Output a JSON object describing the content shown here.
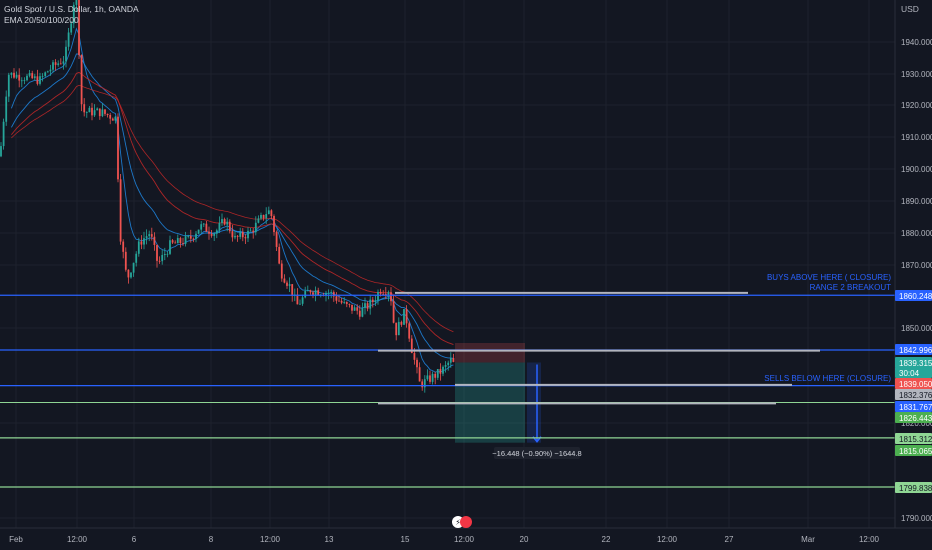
{
  "header": {
    "symbol_line": "Gold Spot / U.S. Dollar, 1h, OANDA",
    "indicator_line": "EMA 20/50/100/200"
  },
  "axis": {
    "currency": "USD",
    "y_ticks": [
      "1940.000",
      "1930.000",
      "1920.000",
      "1910.000",
      "1900.000",
      "1890.000",
      "1880.000",
      "1870.000",
      "1850.000",
      "1820.000",
      "1790.000"
    ],
    "x_ticks": [
      "Feb",
      "12:00",
      "6",
      "8",
      "12:00",
      "13",
      "15",
      "12:00",
      "20",
      "22",
      "12:00",
      "27",
      "Mar",
      "12:00"
    ]
  },
  "colors": {
    "background": "#131722",
    "up": "#26a69a",
    "down": "#ef5350",
    "blue_level": "#2962ff",
    "green_level": "#8fd694",
    "grey_line": "#b2b5be",
    "ema_fast": "#1e88e5",
    "ema_slow": "#c62828"
  },
  "annotations": {
    "buy_line1": "BUYS ABOVE HERE ( CLOSURE)",
    "buy_line2": "RANGE 2 BREAKOUT",
    "sell_line": "SELLS BELOW HERE (CLOSURE)",
    "measure": "−16.448 (−0.90%) −1644.8"
  },
  "price_labels": [
    {
      "text": "1860.248",
      "bg": "#2962ff",
      "fg": "#ffffff"
    },
    {
      "text": "1842.996",
      "bg": "#2962ff",
      "fg": "#ffffff"
    },
    {
      "text": "1839.315",
      "bg": "#26a69a",
      "fg": "#ffffff"
    },
    {
      "text": "30:04",
      "bg": "#26a69a",
      "fg": "#ffffff"
    },
    {
      "text": "1839.050",
      "bg": "#ef5350",
      "fg": "#ffffff"
    },
    {
      "text": "1832.376",
      "bg": "#b2b5be",
      "fg": "#131722"
    },
    {
      "text": "1831.767",
      "bg": "#2962ff",
      "fg": "#ffffff"
    },
    {
      "text": "1826.443",
      "bg": "#4caf50",
      "fg": "#ffffff"
    },
    {
      "text": "1815.312",
      "bg": "#8fd694",
      "fg": "#131722"
    },
    {
      "text": "1815.065",
      "bg": "#4caf50",
      "fg": "#ffffff"
    },
    {
      "text": "1799.838",
      "bg": "#8fd694",
      "fg": "#131722"
    }
  ],
  "chart_data": {
    "type": "line",
    "title": "Gold Spot / U.S. Dollar, 1h, OANDA",
    "ylim": [
      1787,
      1958
    ],
    "x": [
      "Feb",
      "12:00",
      "6",
      "8",
      "12:00",
      "13",
      "15",
      "12:00"
    ],
    "series": [
      {
        "name": "Price",
        "values": [
          1924,
          1957,
          1862,
          1884,
          1890,
          1858,
          1833,
          1840
        ]
      }
    ],
    "horizontal_levels": [
      {
        "value": 1860.248,
        "label": "BUYS ABOVE HERE ( CLOSURE) / RANGE 2 BREAKOUT"
      },
      {
        "value": 1842.996
      },
      {
        "value": 1831.767,
        "label": "SELLS BELOW HERE (CLOSURE)"
      },
      {
        "value": 1826.443
      },
      {
        "value": 1815.312
      },
      {
        "value": 1799.838
      }
    ]
  }
}
